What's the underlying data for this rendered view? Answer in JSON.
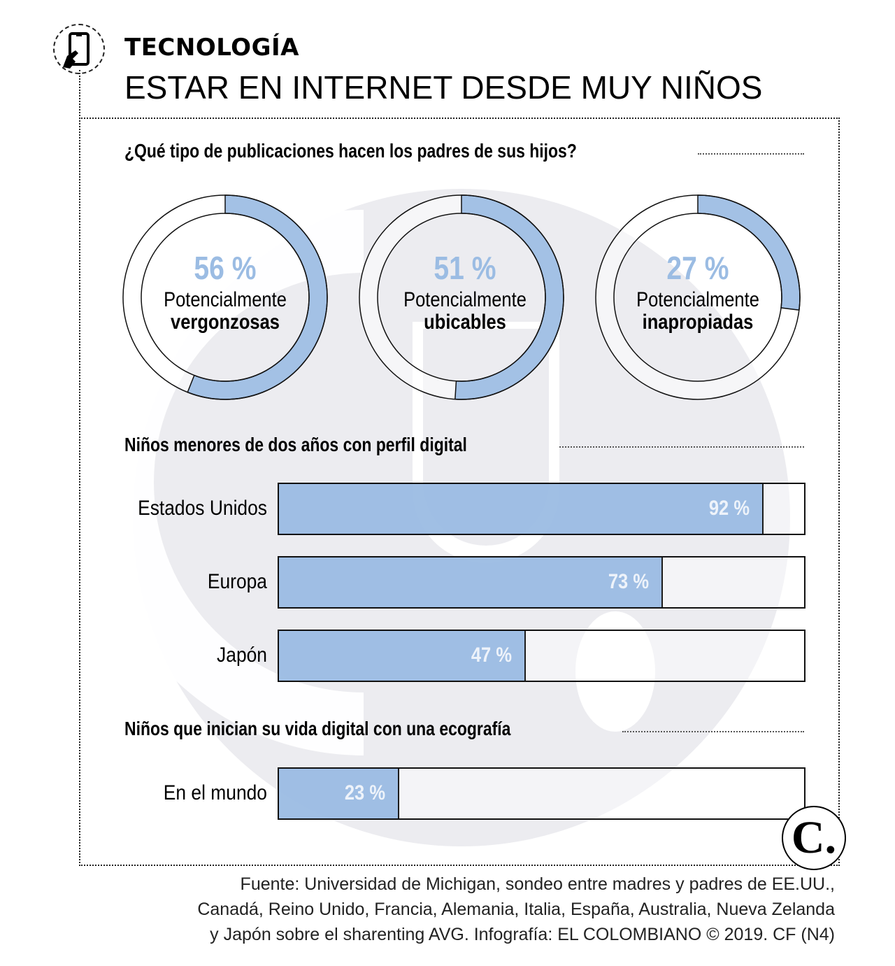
{
  "header": {
    "kicker": "TECNOLOGÍA",
    "title": "ESTAR EN INTERNET DESDE MUY NIÑOS",
    "icon": "tablet-touch-icon"
  },
  "colors": {
    "accent": "#9bbce3",
    "accent_dark": "#93b1d8",
    "watermark": "#ececf0",
    "text": "#000000"
  },
  "chart_data": [
    {
      "type": "pie",
      "title": "¿Qué tipo de publicaciones hacen los padres de sus hijos?",
      "style": "donut",
      "items": [
        {
          "value": 56,
          "label_pct": "56 %",
          "line1": "Potencialmente",
          "line2": "vergonzosas"
        },
        {
          "value": 51,
          "label_pct": "51 %",
          "line1": "Potencialmente",
          "line2": "ubicables"
        },
        {
          "value": 27,
          "label_pct": "27 %",
          "line1": "Potencialmente",
          "line2": "inapropiadas"
        }
      ]
    },
    {
      "type": "bar",
      "orientation": "horizontal",
      "title": "Niños menores de dos años con perfil digital",
      "categories": [
        "Estados Unidos",
        "Europa",
        "Japón"
      ],
      "values": [
        92,
        73,
        47
      ],
      "value_labels": [
        "92 %",
        "73 %",
        "47 %"
      ],
      "xlim": [
        0,
        100
      ]
    },
    {
      "type": "bar",
      "orientation": "horizontal",
      "title": "Niños que inician su vida digital con una ecografía",
      "categories": [
        "En el mundo"
      ],
      "values": [
        23
      ],
      "value_labels": [
        "23 %"
      ],
      "xlim": [
        0,
        100
      ]
    }
  ],
  "footer": {
    "source_lines": [
      "Fuente: Universidad de Michigan, sondeo entre madres y padres de EE.UU.,",
      "Canadá, Reino Unido, Francia, Alemania, Italia, España, Australia, Nueva Zelanda",
      "y Japón sobre el sharenting AVG. Infografía: EL COLOMBIANO © 2019. CF (N4)"
    ],
    "logo": "C."
  }
}
